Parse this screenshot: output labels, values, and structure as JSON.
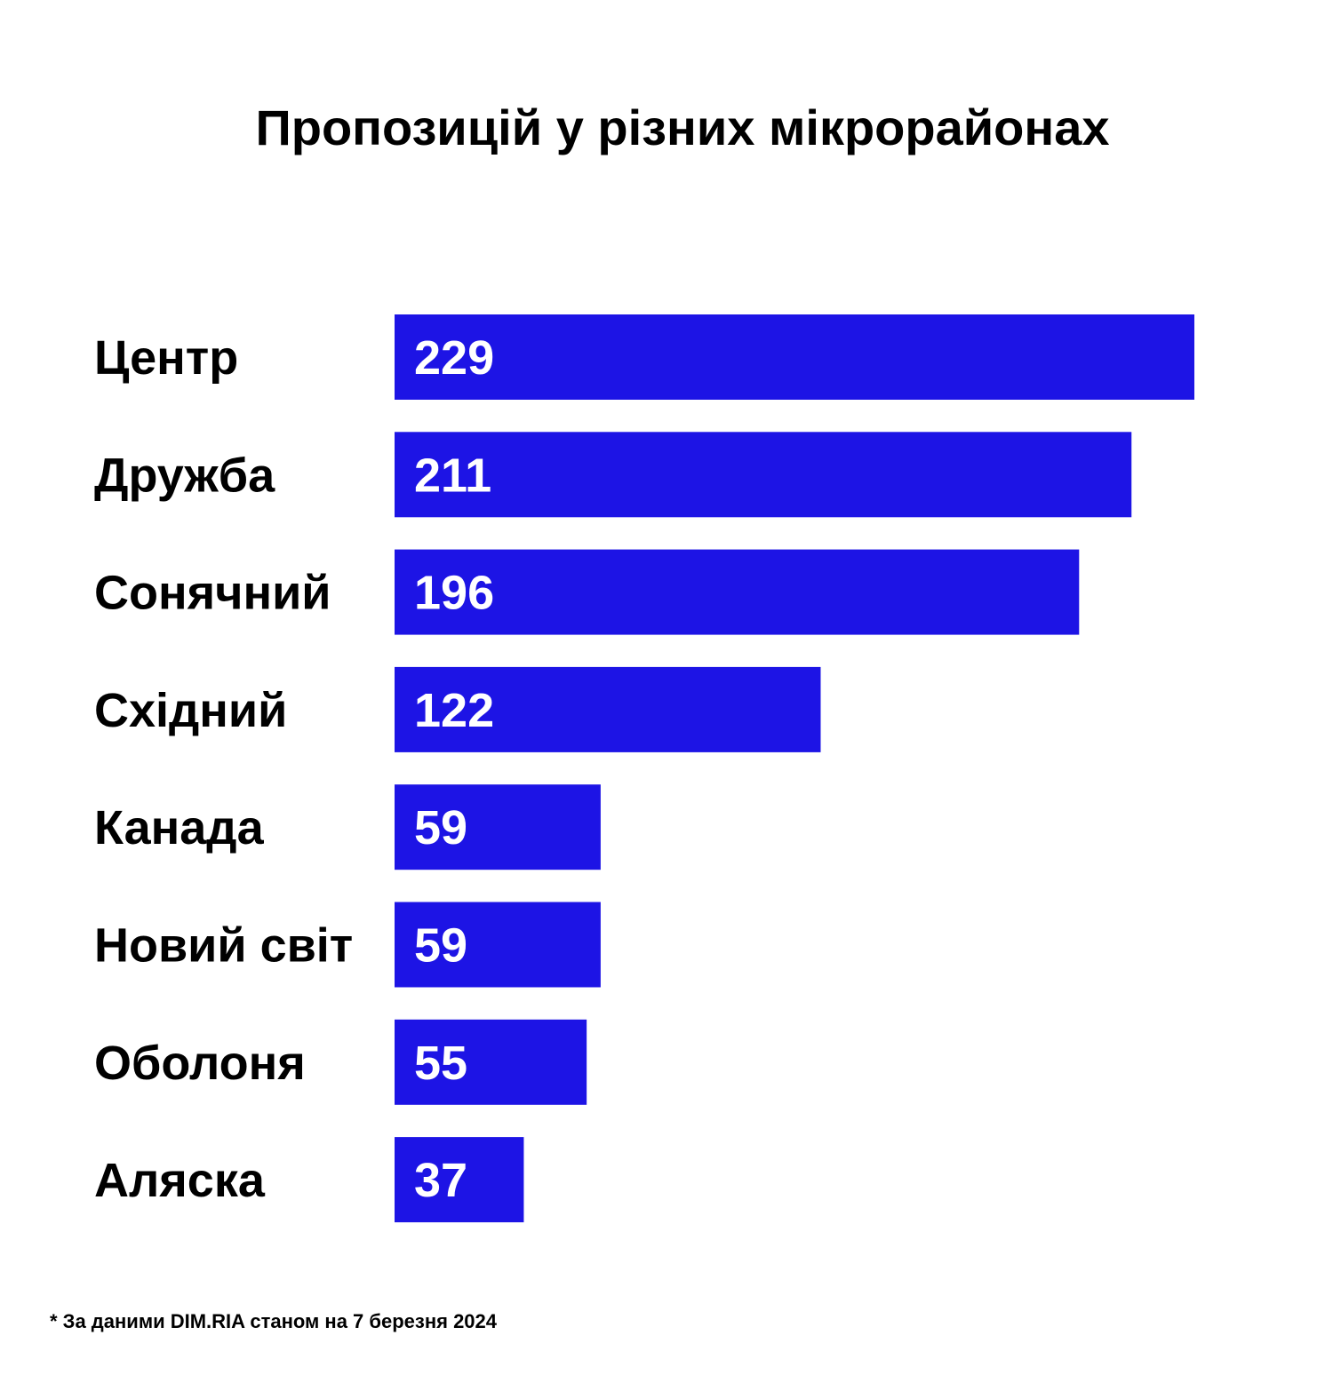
{
  "chart_data": {
    "type": "bar",
    "orientation": "horizontal",
    "title": "Пропозицій у різних мікрорайонах",
    "categories": [
      "Центр",
      "Дружба",
      "Сонячний",
      "Східний",
      "Канада",
      "Новий світ",
      "Оболоня",
      "Аляска"
    ],
    "values": [
      229,
      211,
      196,
      122,
      59,
      59,
      55,
      37
    ],
    "value_labels": [
      "229",
      "211",
      "196",
      "122",
      "59",
      "59",
      "55",
      "37"
    ],
    "xlim": [
      0,
      229
    ],
    "grid": false,
    "legend": "none",
    "bar_color": "#1d14e5",
    "value_label_color": "#ffffff"
  },
  "footnote": "* За даними DIM.RIA станом на 7 березня 2024"
}
